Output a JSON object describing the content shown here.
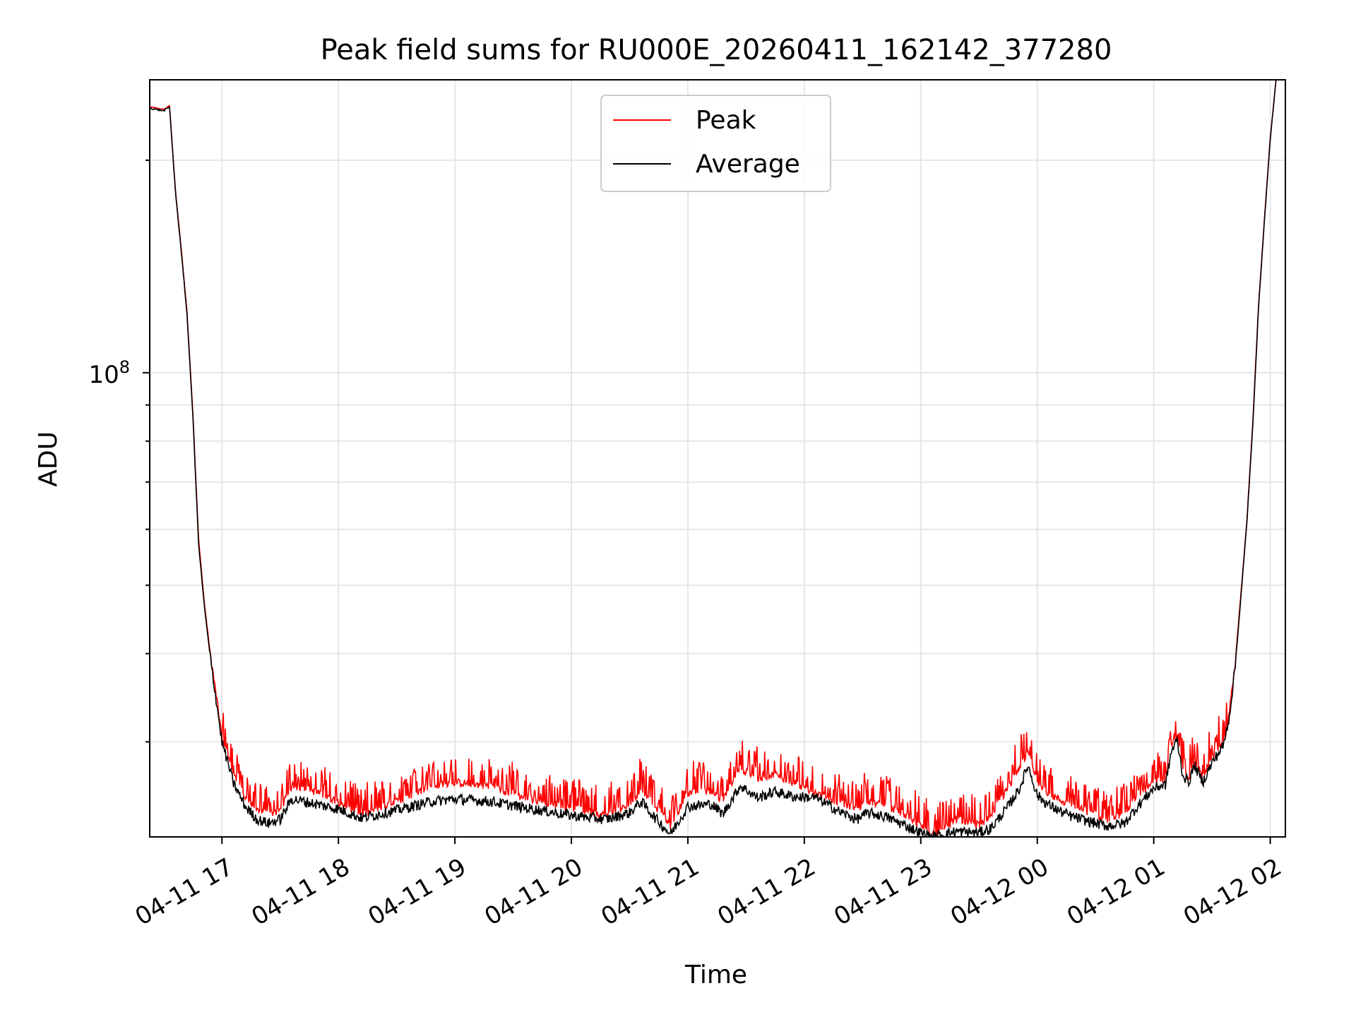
{
  "chart_data": {
    "type": "line",
    "title": "Peak field sums for RU000E_20260411_162142_377280",
    "xlabel": "Time",
    "ylabel": "ADU",
    "yscale": "log",
    "ylim": [
      22000000,
      260000000
    ],
    "y_major_ticks": [
      {
        "value": 100000000,
        "label_base": "10",
        "label_exp": "8"
      }
    ],
    "y_minor_ticks": [
      30000000,
      40000000,
      50000000,
      60000000,
      70000000,
      80000000,
      90000000,
      200000000
    ],
    "x_range_hours": [
      16.38,
      26.13
    ],
    "x_ticks": [
      {
        "hour": 17,
        "label": "04-11 17"
      },
      {
        "hour": 18,
        "label": "04-11 18"
      },
      {
        "hour": 19,
        "label": "04-11 19"
      },
      {
        "hour": 20,
        "label": "04-11 20"
      },
      {
        "hour": 21,
        "label": "04-11 21"
      },
      {
        "hour": 22,
        "label": "04-11 22"
      },
      {
        "hour": 23,
        "label": "04-11 23"
      },
      {
        "hour": 24,
        "label": "04-12 00"
      },
      {
        "hour": 25,
        "label": "04-12 01"
      },
      {
        "hour": 26,
        "label": "04-12 02"
      }
    ],
    "grid": true,
    "legend_position": "top-center",
    "series": [
      {
        "name": "Peak",
        "color": "#ff0000",
        "note": "tracks Average with frequent upward spikes of ~1-3.5M ADU",
        "points": [
          [
            16.38,
            238000000
          ],
          [
            16.5,
            236000000
          ],
          [
            16.55,
            239000000
          ],
          [
            16.6,
            182000000
          ],
          [
            16.65,
            150000000
          ],
          [
            16.7,
            122000000
          ],
          [
            16.75,
            88000000
          ],
          [
            16.8,
            58000000
          ],
          [
            16.85,
            47000000
          ],
          [
            16.9,
            40000000
          ],
          [
            16.95,
            35000000
          ],
          [
            17.0,
            30500000
          ],
          [
            17.1,
            27000000
          ],
          [
            17.2,
            25000000
          ],
          [
            17.3,
            24000000
          ],
          [
            17.4,
            23700000
          ],
          [
            17.5,
            24000000
          ],
          [
            17.6,
            26000000
          ],
          [
            17.8,
            25500000
          ],
          [
            18.0,
            24700000
          ],
          [
            18.2,
            23600000
          ],
          [
            18.5,
            24700000
          ],
          [
            18.8,
            26000000
          ],
          [
            19.0,
            26300000
          ],
          [
            19.3,
            26000000
          ],
          [
            19.6,
            25000000
          ],
          [
            20.0,
            24200000
          ],
          [
            20.3,
            23600000
          ],
          [
            20.5,
            24400000
          ],
          [
            20.6,
            25800000
          ],
          [
            20.7,
            24600000
          ],
          [
            20.85,
            22800000
          ],
          [
            21.0,
            25400000
          ],
          [
            21.2,
            25600000
          ],
          [
            21.3,
            24800000
          ],
          [
            21.45,
            27500000
          ],
          [
            21.6,
            26600000
          ],
          [
            21.75,
            27000000
          ],
          [
            21.9,
            26300000
          ],
          [
            22.1,
            25400000
          ],
          [
            22.3,
            24600000
          ],
          [
            22.45,
            24200000
          ],
          [
            22.55,
            24700000
          ],
          [
            22.7,
            24300000
          ],
          [
            22.9,
            23500000
          ],
          [
            23.0,
            22800000
          ],
          [
            23.1,
            22200000
          ],
          [
            23.2,
            22600000
          ],
          [
            23.3,
            23300000
          ],
          [
            23.5,
            22900000
          ],
          [
            23.6,
            23600000
          ],
          [
            23.75,
            25800000
          ],
          [
            23.85,
            27700000
          ],
          [
            23.92,
            29000000
          ],
          [
            24.0,
            26500000
          ],
          [
            24.1,
            25300000
          ],
          [
            24.2,
            24800000
          ],
          [
            24.3,
            24300000
          ],
          [
            24.5,
            23700000
          ],
          [
            24.6,
            23300000
          ],
          [
            24.75,
            23700000
          ],
          [
            24.85,
            25200000
          ],
          [
            25.0,
            26300000
          ],
          [
            25.1,
            26600000
          ],
          [
            25.15,
            29500000
          ],
          [
            25.2,
            30500000
          ],
          [
            25.25,
            27300000
          ],
          [
            25.3,
            26700000
          ],
          [
            25.35,
            28300000
          ],
          [
            25.42,
            26700000
          ],
          [
            25.5,
            28500000
          ],
          [
            25.6,
            30000000
          ],
          [
            25.65,
            33000000
          ],
          [
            25.7,
            39000000
          ],
          [
            25.75,
            49000000
          ],
          [
            25.8,
            62000000
          ],
          [
            25.85,
            85000000
          ],
          [
            25.9,
            125000000
          ],
          [
            25.95,
            165000000
          ],
          [
            26.0,
            215000000
          ],
          [
            26.05,
            260000000
          ]
        ]
      },
      {
        "name": "Average",
        "color": "#000000",
        "points": [
          [
            16.38,
            237000000
          ],
          [
            16.5,
            235000000
          ],
          [
            16.55,
            238000000
          ],
          [
            16.6,
            181000000
          ],
          [
            16.65,
            149000000
          ],
          [
            16.7,
            121000000
          ],
          [
            16.75,
            87000000
          ],
          [
            16.8,
            57000000
          ],
          [
            16.85,
            46500000
          ],
          [
            16.9,
            39500000
          ],
          [
            16.95,
            34500000
          ],
          [
            17.0,
            30000000
          ],
          [
            17.1,
            26200000
          ],
          [
            17.2,
            24300000
          ],
          [
            17.3,
            23300000
          ],
          [
            17.4,
            23000000
          ],
          [
            17.5,
            23300000
          ],
          [
            17.6,
            24900000
          ],
          [
            17.8,
            24500000
          ],
          [
            18.0,
            24100000
          ],
          [
            18.2,
            23400000
          ],
          [
            18.5,
            24000000
          ],
          [
            18.8,
            24700000
          ],
          [
            19.0,
            24900000
          ],
          [
            19.3,
            24700000
          ],
          [
            19.6,
            24200000
          ],
          [
            20.0,
            23600000
          ],
          [
            20.3,
            23300000
          ],
          [
            20.5,
            23800000
          ],
          [
            20.6,
            24700000
          ],
          [
            20.7,
            23600000
          ],
          [
            20.85,
            22200000
          ],
          [
            21.0,
            24300000
          ],
          [
            21.2,
            24500000
          ],
          [
            21.3,
            23700000
          ],
          [
            21.45,
            26000000
          ],
          [
            21.6,
            25000000
          ],
          [
            21.75,
            25500000
          ],
          [
            21.9,
            25100000
          ],
          [
            22.1,
            25000000
          ],
          [
            22.3,
            23900000
          ],
          [
            22.45,
            23300000
          ],
          [
            22.55,
            23800000
          ],
          [
            22.7,
            23500000
          ],
          [
            22.9,
            22700000
          ],
          [
            23.0,
            22300000
          ],
          [
            23.1,
            22000000
          ],
          [
            23.2,
            22200000
          ],
          [
            23.3,
            22400000
          ],
          [
            23.5,
            22300000
          ],
          [
            23.6,
            22600000
          ],
          [
            23.75,
            24300000
          ],
          [
            23.85,
            25800000
          ],
          [
            23.92,
            27800000
          ],
          [
            24.0,
            25200000
          ],
          [
            24.1,
            24400000
          ],
          [
            24.2,
            23900000
          ],
          [
            24.3,
            23500000
          ],
          [
            24.5,
            23000000
          ],
          [
            24.6,
            22800000
          ],
          [
            24.75,
            23000000
          ],
          [
            24.85,
            24200000
          ],
          [
            25.0,
            25800000
          ],
          [
            25.1,
            26100000
          ],
          [
            25.15,
            29000000
          ],
          [
            25.2,
            30200000
          ],
          [
            25.25,
            26900000
          ],
          [
            25.3,
            26300000
          ],
          [
            25.35,
            27800000
          ],
          [
            25.42,
            26300000
          ],
          [
            25.5,
            28000000
          ],
          [
            25.6,
            29700000
          ],
          [
            25.65,
            32700000
          ],
          [
            25.7,
            38500000
          ],
          [
            25.75,
            48500000
          ],
          [
            25.8,
            61500000
          ],
          [
            25.85,
            84000000
          ],
          [
            25.9,
            124000000
          ],
          [
            25.95,
            164000000
          ],
          [
            26.0,
            214000000
          ],
          [
            26.05,
            260000000
          ]
        ]
      }
    ]
  }
}
